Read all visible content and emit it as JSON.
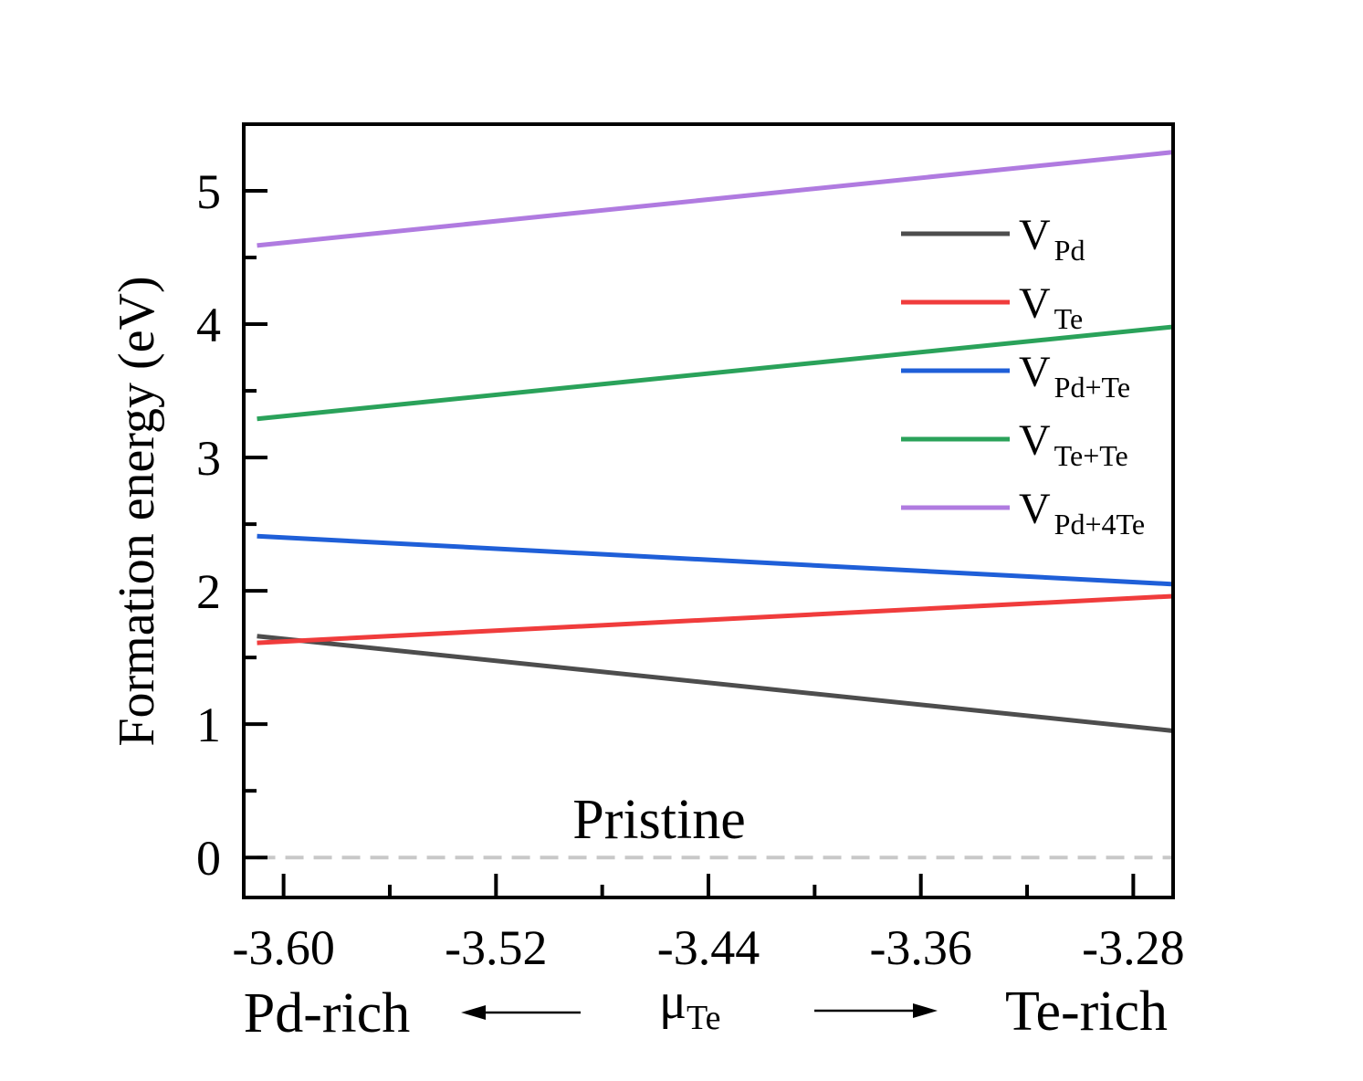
{
  "chart_data": {
    "type": "line",
    "title": "",
    "xlabel": "μ",
    "xlabel_sub": "Te",
    "ylabel": "Formation energy (eV)",
    "xlim": [
      -3.615,
      -3.265
    ],
    "ylim": [
      -0.3,
      5.5
    ],
    "x_ticks": [
      -3.6,
      -3.52,
      -3.44,
      -3.36,
      -3.28
    ],
    "x_tick_labels": [
      "-3.60",
      "-3.52",
      "-3.44",
      "-3.36",
      "-3.28"
    ],
    "y_ticks": [
      0,
      1,
      2,
      3,
      4,
      5
    ],
    "y_tick_labels": [
      "0",
      "1",
      "2",
      "3",
      "4",
      "5"
    ],
    "x_range": [
      -3.61,
      -3.265
    ],
    "legend_position": "top-right",
    "series": [
      {
        "name": "V",
        "sub": "Pd",
        "color": "#4d4d4d",
        "y": [
          1.66,
          0.95
        ]
      },
      {
        "name": "V",
        "sub": "Te",
        "color": "#f03c3c",
        "y": [
          1.61,
          1.96
        ]
      },
      {
        "name": "V",
        "sub": "Pd+Te",
        "color": "#1f5fd8",
        "y": [
          2.41,
          2.05
        ]
      },
      {
        "name": "V",
        "sub": "Te+Te",
        "color": "#2aa25a",
        "y": [
          3.29,
          3.98
        ]
      },
      {
        "name": "V",
        "sub": "Pd+4Te",
        "color": "#b07be0",
        "y": [
          4.59,
          5.29
        ]
      }
    ],
    "reference_line": {
      "label": "Pristine",
      "y": 0,
      "color": "#c8c8c8",
      "style": "dashed"
    },
    "annotations": {
      "left": "Pd-rich",
      "right": "Te-rich"
    }
  }
}
